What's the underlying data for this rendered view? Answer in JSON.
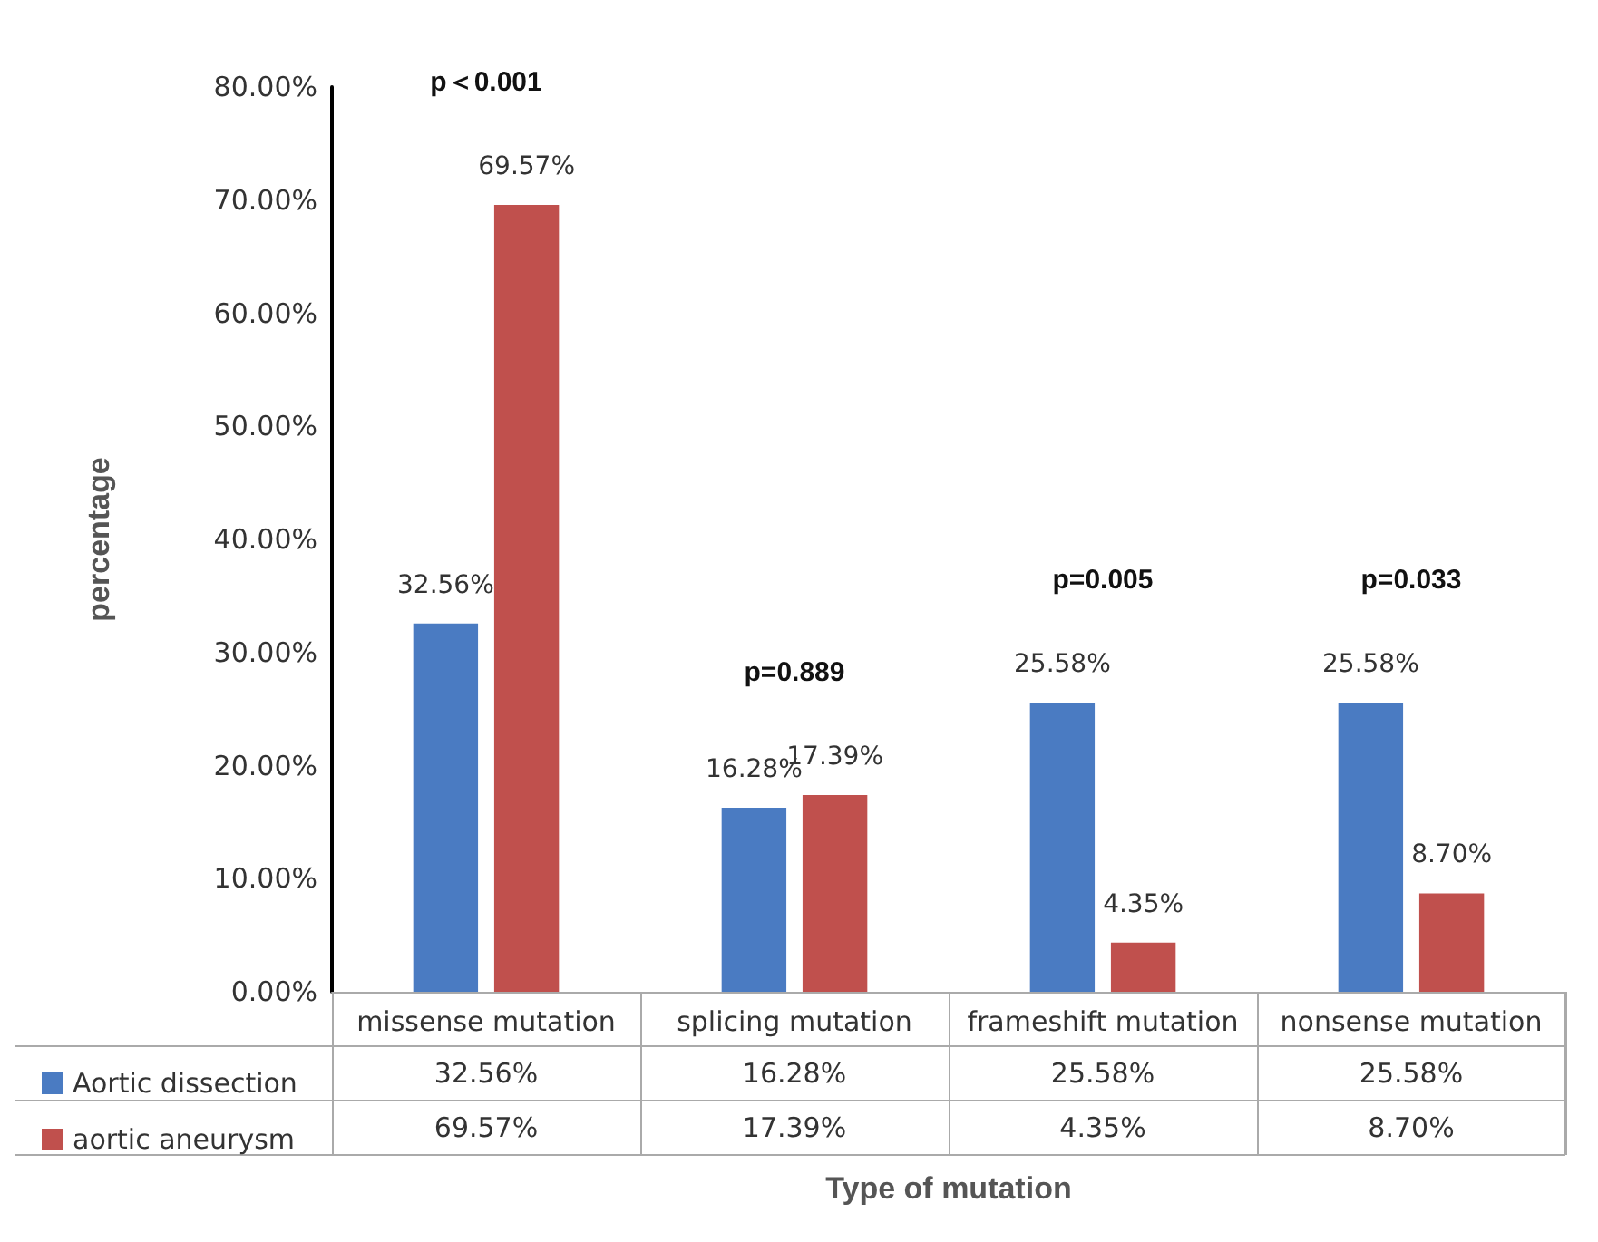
{
  "chart_data": {
    "type": "bar",
    "xlabel": "Type of mutation",
    "ylabel": "percentage",
    "categories": [
      "missense mutation",
      "splicing mutation",
      "frameshift mutation",
      "nonsense mutation"
    ],
    "series": [
      {
        "name": "Aortic dissection",
        "color": "#4a7bc2",
        "values": [
          32.56,
          16.28,
          25.58,
          25.58
        ],
        "value_labels": [
          "32.56%",
          "16.28%",
          "25.58%",
          "25.58%"
        ]
      },
      {
        "name": "aortic aneurysm",
        "color": "#c0504d",
        "values": [
          69.57,
          17.39,
          4.35,
          8.7
        ],
        "value_labels": [
          "69.57%",
          "17.39%",
          "4.35%",
          "8.70%"
        ]
      }
    ],
    "ylim": [
      0,
      80
    ],
    "yticks": [
      {
        "value": 0,
        "label": "0.00%"
      },
      {
        "value": 10,
        "label": "10.00%"
      },
      {
        "value": 20,
        "label": "20.00%"
      },
      {
        "value": 30,
        "label": "30.00%"
      },
      {
        "value": 40,
        "label": "40.00%"
      },
      {
        "value": 50,
        "label": "50.00%"
      },
      {
        "value": 60,
        "label": "60.00%"
      },
      {
        "value": 70,
        "label": "70.00%"
      },
      {
        "value": 80,
        "label": "80.00%"
      }
    ],
    "grid": false,
    "legend": "bottom",
    "annotations": [
      "p＜0.001",
      "p=0.889",
      "p=0.005",
      "p=0.033"
    ]
  }
}
